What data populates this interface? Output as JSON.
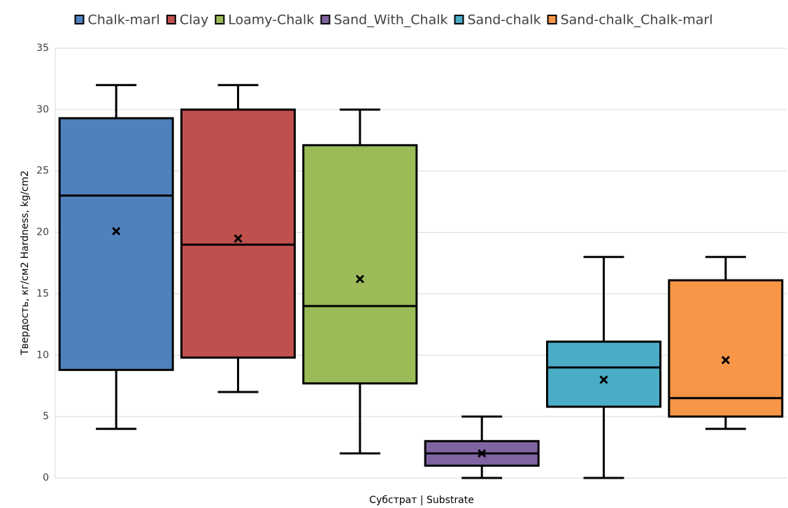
{
  "chart_data": {
    "type": "box",
    "title": "",
    "xlabel": "Субстрат |  Substrate",
    "ylabel": "Твердость, кг/см2  Hardness, kg/cm2",
    "ylim": [
      0,
      35
    ],
    "yticks": [
      "0",
      "5",
      "10",
      "15",
      "20",
      "25",
      "30",
      "35"
    ],
    "grid": true,
    "legend_position": "top",
    "series": [
      {
        "name": "Chalk-marl",
        "color": "#4f81bd",
        "min": 4,
        "q1": 8.8,
        "median": 23,
        "q3": 29.3,
        "max": 32,
        "mean": 20.1
      },
      {
        "name": "Clay",
        "color": "#c0504d",
        "min": 7,
        "q1": 9.8,
        "median": 19,
        "q3": 30,
        "max": 32,
        "mean": 19.5
      },
      {
        "name": "Loamy-Chalk",
        "color": "#9bbb59",
        "min": 2,
        "q1": 7.7,
        "median": 14,
        "q3": 27.1,
        "max": 30,
        "mean": 16.2
      },
      {
        "name": "Sand_With_Chalk",
        "color": "#8064a2",
        "min": 0,
        "q1": 1,
        "median": 2,
        "q3": 3,
        "max": 5,
        "mean": 2
      },
      {
        "name": "Sand-chalk",
        "color": "#4bacc6",
        "min": 0,
        "q1": 5.8,
        "median": 9,
        "q3": 11.1,
        "max": 18,
        "mean": 8
      },
      {
        "name": "Sand-chalk_Chalk-marl",
        "color": "#f79646",
        "min": 4,
        "q1": 5,
        "median": 6.5,
        "q3": 16.1,
        "max": 18,
        "mean": 9.6
      }
    ]
  }
}
